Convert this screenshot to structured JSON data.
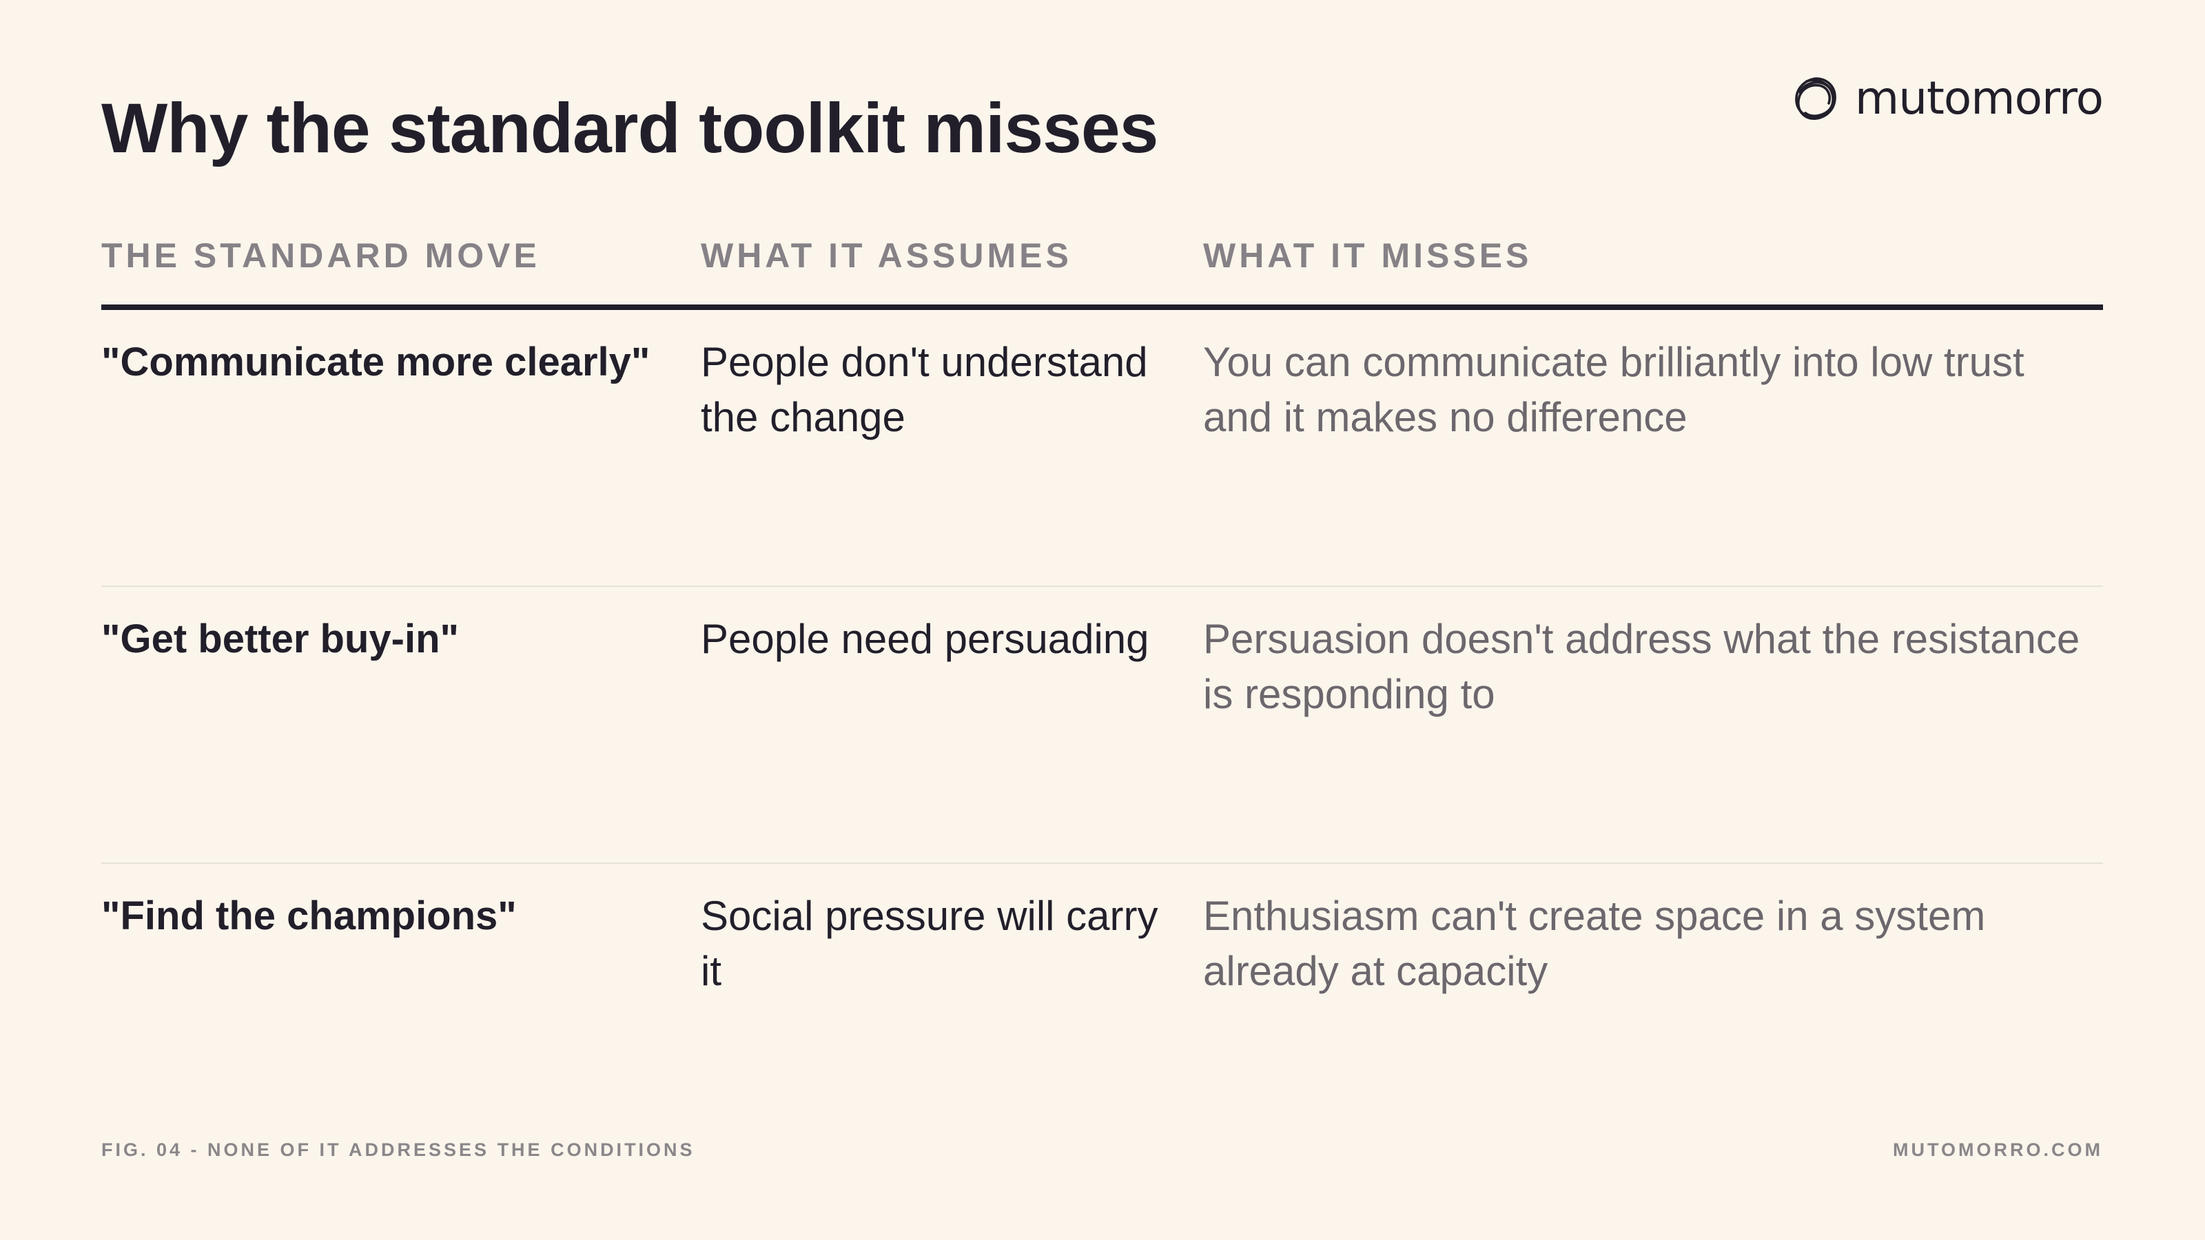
{
  "title": "Why the standard toolkit misses",
  "brand": {
    "name": "mutomorro",
    "icon": "loop-knot-icon"
  },
  "table": {
    "headers": [
      "THE STANDARD MOVE",
      "WHAT IT ASSUMES",
      "WHAT IT MISSES"
    ],
    "rows": [
      {
        "move": "\"Communicate more clearly\"",
        "assumes": "People don't understand the change",
        "misses": "You can communicate brilliantly into low trust and it makes no difference"
      },
      {
        "move": "\"Get better buy-in\"",
        "assumes": "People need persuading",
        "misses": "Persuasion doesn't address what the resistance is responding to"
      },
      {
        "move": "\"Find the champions\"",
        "assumes": "Social pressure will carry it",
        "misses": "Enthusiasm can't create space in a system already at capacity"
      }
    ]
  },
  "footer": {
    "caption": "FIG. 04 - NONE OF IT ADDRESSES THE CONDITIONS",
    "site": "MUTOMORRO.COM"
  },
  "colors": {
    "background": "#fcf5ec",
    "text": "#221f2b",
    "muted": "#6c676d",
    "header": "#858186"
  }
}
